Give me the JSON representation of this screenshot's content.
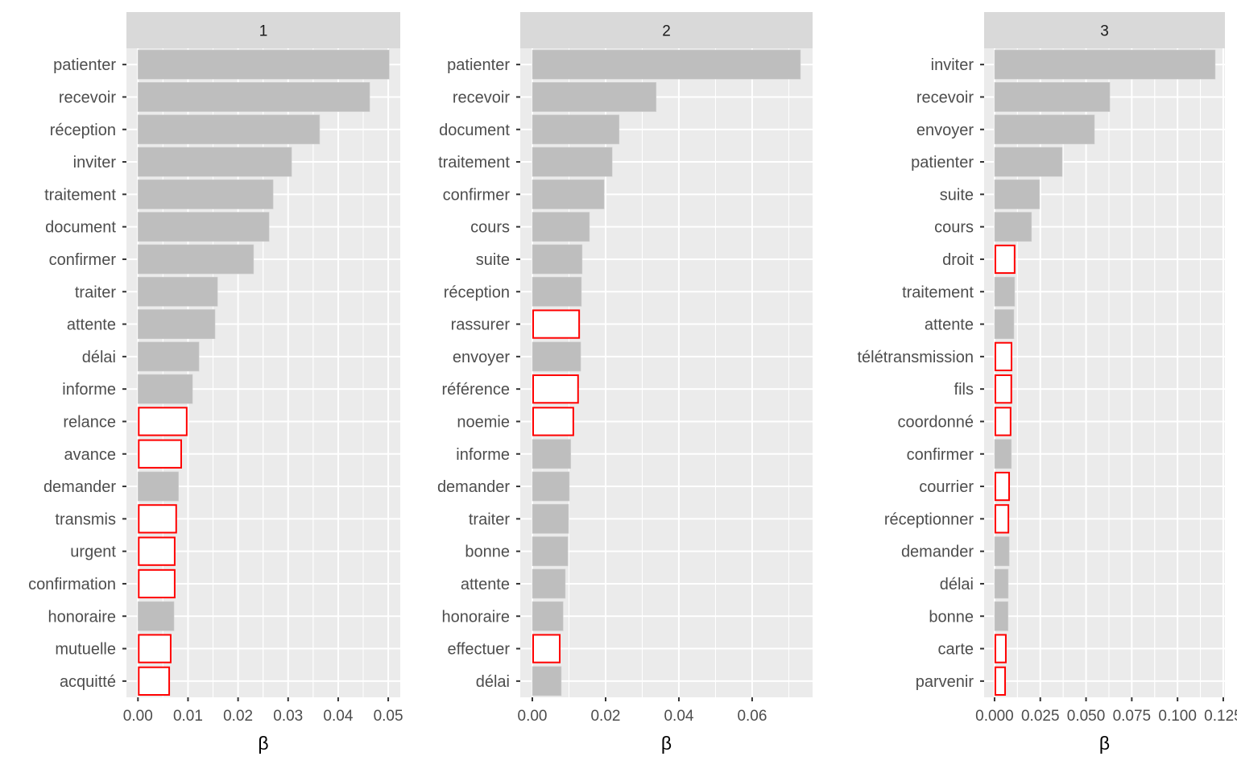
{
  "chart_data": [
    {
      "type": "bar",
      "orientation": "horizontal",
      "facet_label": "1",
      "xlabel": "β",
      "xlim": [
        -0.0023,
        0.0524
      ],
      "ticks": [
        0,
        0.01,
        0.02,
        0.03,
        0.04,
        0.05
      ],
      "tick_labels": [
        "0.00",
        "0.01",
        "0.02",
        "0.03",
        "0.04",
        "0.05"
      ],
      "categories": [
        "patienter",
        "recevoir",
        "réception",
        "inviter",
        "traitement",
        "document",
        "confirmer",
        "traiter",
        "attente",
        "délai",
        "informe",
        "relance",
        "avance",
        "demander",
        "transmis",
        "urgent",
        "confirmation",
        "honoraire",
        "mutuelle",
        "acquitté"
      ],
      "values": [
        0.0502,
        0.0463,
        0.0363,
        0.0307,
        0.027,
        0.0262,
        0.0231,
        0.0159,
        0.0154,
        0.0122,
        0.0109,
        0.0099,
        0.0088,
        0.0081,
        0.0078,
        0.0075,
        0.0075,
        0.0072,
        0.0067,
        0.0064
      ],
      "highlighted": [
        false,
        false,
        false,
        false,
        false,
        false,
        false,
        false,
        false,
        false,
        false,
        true,
        true,
        false,
        true,
        true,
        true,
        false,
        true,
        true
      ]
    },
    {
      "type": "bar",
      "orientation": "horizontal",
      "facet_label": "2",
      "xlabel": "β",
      "xlim": [
        -0.0033,
        0.0765
      ],
      "ticks": [
        0,
        0.02,
        0.04,
        0.06
      ],
      "tick_labels": [
        "0.00",
        "0.02",
        "0.04",
        "0.06"
      ],
      "categories": [
        "patienter",
        "recevoir",
        "document",
        "traitement",
        "confirmer",
        "cours",
        "suite",
        "réception",
        "rassurer",
        "envoyer",
        "référence",
        "noemie",
        "informe",
        "demander",
        "traiter",
        "bonne",
        "attente",
        "honoraire",
        "effectuer",
        "délai"
      ],
      "values": [
        0.0732,
        0.0338,
        0.0237,
        0.0218,
        0.0196,
        0.0156,
        0.0136,
        0.0134,
        0.013,
        0.0132,
        0.0127,
        0.0114,
        0.0105,
        0.0101,
        0.0099,
        0.0097,
        0.009,
        0.0084,
        0.0077,
        0.0079
      ],
      "highlighted": [
        false,
        false,
        false,
        false,
        false,
        false,
        false,
        false,
        true,
        false,
        true,
        true,
        false,
        false,
        false,
        false,
        false,
        false,
        true,
        false
      ]
    },
    {
      "type": "bar",
      "orientation": "horizontal",
      "facet_label": "3",
      "xlabel": "β",
      "xlim": [
        -0.0057,
        0.1259
      ],
      "ticks": [
        0,
        0.025,
        0.05,
        0.075,
        0.1,
        0.125
      ],
      "tick_labels": [
        "0.000",
        "0.025",
        "0.050",
        "0.075",
        "0.100",
        "0.125"
      ],
      "categories": [
        "inviter",
        "recevoir",
        "envoyer",
        "patienter",
        "suite",
        "cours",
        "droit",
        "traitement",
        "attente",
        "télétransmission",
        "fils",
        "coordonné",
        "confirmer",
        "courrier",
        "réceptionner",
        "demander",
        "délai",
        "bonne",
        "carte",
        "parvenir"
      ],
      "values": [
        0.1206,
        0.063,
        0.0546,
        0.037,
        0.0246,
        0.0202,
        0.0114,
        0.011,
        0.0106,
        0.0097,
        0.0096,
        0.0092,
        0.0092,
        0.0084,
        0.008,
        0.008,
        0.0075,
        0.0074,
        0.0066,
        0.0062
      ],
      "highlighted": [
        false,
        false,
        false,
        false,
        false,
        false,
        true,
        false,
        false,
        true,
        true,
        true,
        false,
        true,
        true,
        false,
        false,
        false,
        true,
        true
      ]
    }
  ],
  "colors": {
    "bar": "#bebebe",
    "highlight_outline": "#ff0000",
    "highlight_fill": "#ffffff",
    "panel_bg": "#ebebeb",
    "strip_bg": "#d9d9d9",
    "text": "#4d4d4d"
  }
}
